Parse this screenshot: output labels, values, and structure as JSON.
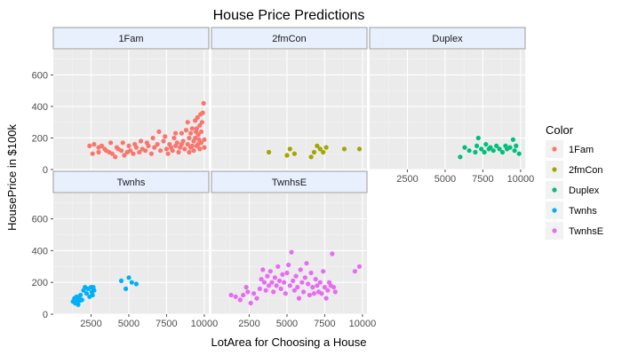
{
  "chart_data": {
    "type": "scatter",
    "title": "House Price Predictions",
    "xlabel": "LotArea for Choosing a House",
    "ylabel": "HousePrice in $100k",
    "xlim": [
      0,
      10300
    ],
    "ylim": [
      0,
      760
    ],
    "x_ticks": [
      2500,
      5000,
      7500,
      10000
    ],
    "x_tick_labels": [
      "2500",
      "5000",
      "7500",
      "10000"
    ],
    "y_ticks": [
      0,
      200,
      400,
      600
    ],
    "y_tick_labels": [
      "0",
      "200",
      "400",
      "600"
    ],
    "grid": true,
    "legend": {
      "title": "Color",
      "position": "right",
      "items": [
        {
          "label": "1Fam",
          "color": "#F8766D"
        },
        {
          "label": "2fmCon",
          "color": "#A3A500"
        },
        {
          "label": "Duplex",
          "color": "#00BF7D"
        },
        {
          "label": "Twnhs",
          "color": "#00B0F6"
        },
        {
          "label": "TwnhsE",
          "color": "#E76BF3"
        }
      ]
    },
    "facets": [
      {
        "name": "1Fam",
        "color": "#F8766D",
        "points": [
          [
            2400,
            150
          ],
          [
            2700,
            160
          ],
          [
            3000,
            140
          ],
          [
            3200,
            150
          ],
          [
            3500,
            120
          ],
          [
            3700,
            110
          ],
          [
            3900,
            100
          ],
          [
            4100,
            80
          ],
          [
            4300,
            130
          ],
          [
            4500,
            120
          ],
          [
            4700,
            90
          ],
          [
            4900,
            110
          ],
          [
            5100,
            120
          ],
          [
            5300,
            100
          ],
          [
            5500,
            140
          ],
          [
            5700,
            110
          ],
          [
            5900,
            130
          ],
          [
            6100,
            120
          ],
          [
            6300,
            150
          ],
          [
            6500,
            100
          ],
          [
            6700,
            140
          ],
          [
            6900,
            160
          ],
          [
            7100,
            120
          ],
          [
            7300,
            180
          ],
          [
            7500,
            130
          ],
          [
            7600,
            100
          ],
          [
            7700,
            160
          ],
          [
            7800,
            140
          ],
          [
            7900,
            120
          ],
          [
            8000,
            200
          ],
          [
            8100,
            150
          ],
          [
            8200,
            170
          ],
          [
            8300,
            110
          ],
          [
            8400,
            140
          ],
          [
            8500,
            230
          ],
          [
            8600,
            180
          ],
          [
            8700,
            130
          ],
          [
            8800,
            250
          ],
          [
            8900,
            160
          ],
          [
            9000,
            200
          ],
          [
            9100,
            140
          ],
          [
            9200,
            260
          ],
          [
            9300,
            180
          ],
          [
            9400,
            310
          ],
          [
            9500,
            150
          ],
          [
            9600,
            220
          ],
          [
            9700,
            280
          ],
          [
            9800,
            170
          ],
          [
            9900,
            360
          ],
          [
            9950,
            420
          ],
          [
            10000,
            190
          ],
          [
            10000,
            140
          ],
          [
            9800,
            240
          ],
          [
            9600,
            160
          ],
          [
            9400,
            200
          ],
          [
            9200,
            150
          ],
          [
            8900,
            300
          ],
          [
            9100,
            230
          ],
          [
            9700,
            130
          ],
          [
            9300,
            120
          ],
          [
            8500,
            160
          ],
          [
            8100,
            230
          ],
          [
            7400,
            210
          ],
          [
            7000,
            240
          ],
          [
            6600,
            200
          ],
          [
            6200,
            170
          ],
          [
            5800,
            180
          ],
          [
            5400,
            160
          ],
          [
            5000,
            150
          ],
          [
            4600,
            170
          ],
          [
            4200,
            140
          ],
          [
            3800,
            170
          ],
          [
            3400,
            130
          ],
          [
            3000,
            110
          ],
          [
            2600,
            100
          ],
          [
            9000,
            110
          ],
          [
            9500,
            260
          ],
          [
            9850,
            300
          ],
          [
            9650,
            190
          ],
          [
            9450,
            240
          ],
          [
            9750,
            350
          ],
          [
            9550,
            330
          ]
        ]
      },
      {
        "name": "2fmCon",
        "color": "#A3A500",
        "points": [
          [
            3800,
            110
          ],
          [
            5000,
            90
          ],
          [
            5200,
            130
          ],
          [
            5500,
            100
          ],
          [
            6600,
            80
          ],
          [
            6800,
            110
          ],
          [
            7000,
            150
          ],
          [
            7200,
            130
          ],
          [
            7400,
            110
          ],
          [
            7600,
            140
          ],
          [
            8800,
            130
          ],
          [
            9800,
            130
          ]
        ]
      },
      {
        "name": "Duplex",
        "color": "#00BF7D",
        "points": [
          [
            6000,
            80
          ],
          [
            6300,
            140
          ],
          [
            6600,
            120
          ],
          [
            7000,
            110
          ],
          [
            7100,
            150
          ],
          [
            7200,
            200
          ],
          [
            7400,
            130
          ],
          [
            7600,
            110
          ],
          [
            7700,
            160
          ],
          [
            7900,
            130
          ],
          [
            8000,
            140
          ],
          [
            8200,
            120
          ],
          [
            8400,
            150
          ],
          [
            8600,
            130
          ],
          [
            8800,
            110
          ],
          [
            9000,
            150
          ],
          [
            9100,
            130
          ],
          [
            9300,
            140
          ],
          [
            9500,
            190
          ],
          [
            9600,
            120
          ],
          [
            9700,
            150
          ],
          [
            9900,
            100
          ]
        ]
      },
      {
        "name": "Twnhs",
        "color": "#00B0F6",
        "points": [
          [
            1300,
            80
          ],
          [
            1400,
            100
          ],
          [
            1450,
            70
          ],
          [
            1500,
            90
          ],
          [
            1550,
            110
          ],
          [
            1600,
            80
          ],
          [
            1650,
            60
          ],
          [
            1700,
            100
          ],
          [
            1750,
            85
          ],
          [
            1800,
            120
          ],
          [
            1900,
            90
          ],
          [
            2000,
            150
          ],
          [
            2100,
            170
          ],
          [
            2200,
            130
          ],
          [
            2300,
            160
          ],
          [
            2400,
            110
          ],
          [
            2500,
            170
          ],
          [
            2550,
            140
          ],
          [
            2600,
            120
          ],
          [
            2650,
            170
          ],
          [
            2700,
            150
          ],
          [
            4500,
            210
          ],
          [
            4800,
            160
          ],
          [
            5000,
            230
          ],
          [
            5200,
            200
          ],
          [
            5500,
            190
          ]
        ]
      },
      {
        "name": "TwnhsE",
        "color": "#E76BF3",
        "points": [
          [
            1300,
            120
          ],
          [
            1600,
            110
          ],
          [
            1900,
            90
          ],
          [
            2100,
            120
          ],
          [
            2300,
            170
          ],
          [
            2400,
            140
          ],
          [
            2600,
            70
          ],
          [
            2800,
            130
          ],
          [
            3000,
            100
          ],
          [
            3200,
            160
          ],
          [
            3300,
            220
          ],
          [
            3400,
            280
          ],
          [
            3500,
            200
          ],
          [
            3600,
            150
          ],
          [
            3700,
            240
          ],
          [
            3800,
            180
          ],
          [
            3900,
            270
          ],
          [
            4000,
            200
          ],
          [
            4100,
            140
          ],
          [
            4200,
            230
          ],
          [
            4300,
            180
          ],
          [
            4400,
            300
          ],
          [
            4500,
            210
          ],
          [
            4600,
            160
          ],
          [
            4700,
            250
          ],
          [
            4800,
            200
          ],
          [
            4900,
            130
          ],
          [
            5000,
            260
          ],
          [
            5100,
            310
          ],
          [
            5200,
            180
          ],
          [
            5300,
            390
          ],
          [
            5400,
            210
          ],
          [
            5500,
            150
          ],
          [
            5600,
            240
          ],
          [
            5700,
            170
          ],
          [
            5800,
            100
          ],
          [
            5900,
            280
          ],
          [
            6000,
            200
          ],
          [
            6100,
            140
          ],
          [
            6200,
            230
          ],
          [
            6300,
            320
          ],
          [
            6400,
            190
          ],
          [
            6500,
            120
          ],
          [
            6600,
            260
          ],
          [
            6700,
            170
          ],
          [
            6800,
            130
          ],
          [
            6900,
            220
          ],
          [
            7000,
            180
          ],
          [
            7100,
            140
          ],
          [
            7200,
            200
          ],
          [
            7300,
            130
          ],
          [
            7400,
            270
          ],
          [
            7500,
            170
          ],
          [
            7600,
            100
          ],
          [
            7700,
            150
          ],
          [
            7800,
            200
          ],
          [
            7900,
            180
          ],
          [
            8000,
            380
          ],
          [
            8100,
            170
          ],
          [
            8200,
            140
          ],
          [
            9500,
            270
          ],
          [
            9800,
            300
          ]
        ]
      }
    ]
  }
}
